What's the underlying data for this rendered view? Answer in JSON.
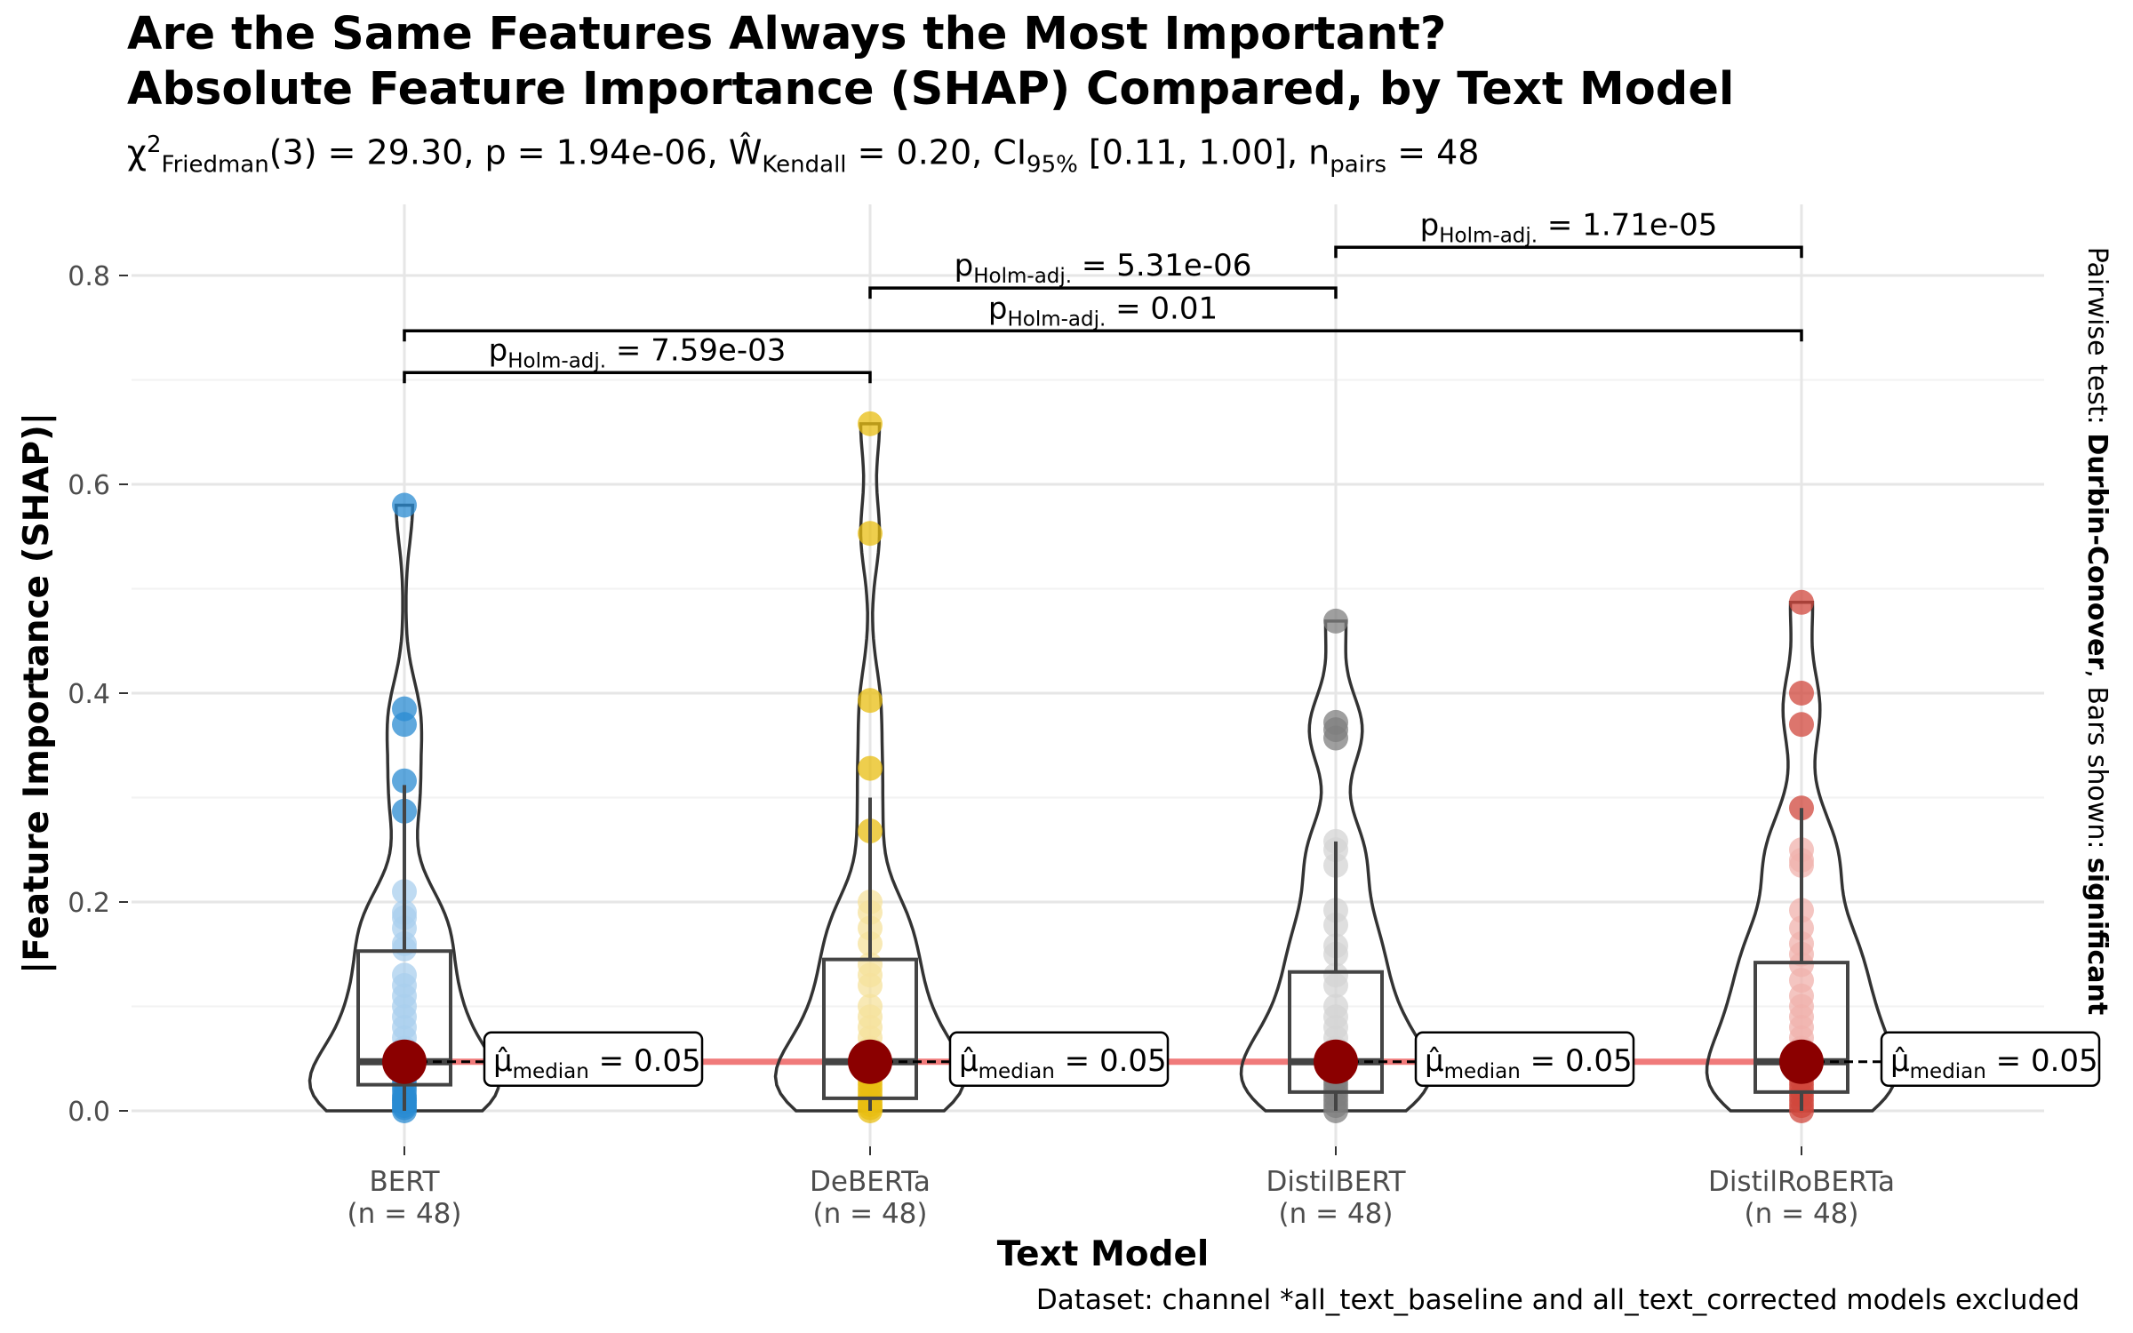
{
  "title": {
    "line1": "Are the Same Features Always the Most Important?",
    "line2": "Absolute Feature Importance (SHAP) Compared, by Text Model"
  },
  "subtitle": {
    "chi_symbol": "χ",
    "chi_sup": "2",
    "chi_sub": "Friedman",
    "df": "(3) = 29.30, p = 1.94e-06, ",
    "w_symbol": "Ŵ",
    "w_sub": "Kendall",
    "w_rest": " = 0.20, CI",
    "ci_sub": "95%",
    "ci_rest": " [0.11, 1.00], n",
    "n_sub": "pairs",
    "n_rest": " = 48"
  },
  "caption": "Dataset:  channel *all_text_baseline and all_text_corrected models excluded",
  "side_note": {
    "prefix": "Pairwise test: ",
    "test": "Durbin-Conover",
    "middle": ", Bars shown: ",
    "bars": "significant"
  },
  "chart_data": {
    "type": "violin",
    "xlabel": "Text Model",
    "ylabel": "|Feature Importance (SHAP)|",
    "ylim": [
      -0.02,
      0.82
    ],
    "yticks": [
      0.0,
      0.2,
      0.4,
      0.6,
      0.8
    ],
    "ytick_labels": [
      "0.0",
      "0.2",
      "0.4",
      "0.6",
      "0.8"
    ],
    "grid": true,
    "groups": [
      {
        "name": "BERT",
        "n_label": "(n = 48)",
        "color": "#2a8bd1",
        "light": "#a9cfee",
        "q1": 0.025,
        "median": 0.047,
        "q3": 0.153,
        "whisker_low": 0.0,
        "whisker_high": 0.312,
        "mean": 0.047,
        "median_label": "= 0.05",
        "points": [
          0.58,
          0.385,
          0.37,
          0.316,
          0.287,
          0.21,
          0.19,
          0.185,
          0.175,
          0.16,
          0.155,
          0.13,
          0.12,
          0.11,
          0.1,
          0.09,
          0.08,
          0.07,
          0.06,
          0.05,
          0.04,
          0.035,
          0.03,
          0.025,
          0.02,
          0.015,
          0.012,
          0.01,
          0.008,
          0.005,
          0.003,
          0.0
        ]
      },
      {
        "name": "DeBERTa",
        "n_label": "(n = 48)",
        "color": "#e8bd12",
        "light": "#f6e19c",
        "q1": 0.012,
        "median": 0.047,
        "q3": 0.145,
        "whisker_low": 0.0,
        "whisker_high": 0.3,
        "mean": 0.047,
        "median_label": "= 0.05",
        "points": [
          0.658,
          0.553,
          0.393,
          0.328,
          0.268,
          0.2,
          0.19,
          0.175,
          0.16,
          0.14,
          0.13,
          0.12,
          0.1,
          0.09,
          0.08,
          0.07,
          0.06,
          0.05,
          0.04,
          0.035,
          0.03,
          0.025,
          0.02,
          0.015,
          0.01,
          0.006,
          0.003,
          0.0
        ]
      },
      {
        "name": "DistilBERT",
        "n_label": "(n = 48)",
        "color": "#7f7f7f",
        "light": "#d4d4d4",
        "q1": 0.018,
        "median": 0.047,
        "q3": 0.133,
        "whisker_low": 0.0,
        "whisker_high": 0.258,
        "mean": 0.047,
        "median_label": "= 0.05",
        "points": [
          0.469,
          0.372,
          0.365,
          0.357,
          0.258,
          0.25,
          0.235,
          0.192,
          0.178,
          0.158,
          0.15,
          0.13,
          0.12,
          0.1,
          0.09,
          0.08,
          0.07,
          0.06,
          0.05,
          0.04,
          0.035,
          0.03,
          0.025,
          0.02,
          0.015,
          0.01,
          0.005,
          0.0
        ]
      },
      {
        "name": "DistilRoBERTa",
        "n_label": "(n = 48)",
        "color": "#d0473c",
        "light": "#f0b2ac",
        "q1": 0.018,
        "median": 0.047,
        "q3": 0.142,
        "whisker_low": 0.0,
        "whisker_high": 0.29,
        "mean": 0.047,
        "median_label": "= 0.05",
        "points": [
          0.487,
          0.4,
          0.37,
          0.29,
          0.25,
          0.24,
          0.235,
          0.192,
          0.175,
          0.16,
          0.15,
          0.14,
          0.125,
          0.11,
          0.1,
          0.09,
          0.08,
          0.07,
          0.06,
          0.05,
          0.04,
          0.03,
          0.025,
          0.02,
          0.015,
          0.01,
          0.005,
          0.0
        ]
      }
    ],
    "comparisons": [
      {
        "from": 0,
        "to": 1,
        "y": 0.707,
        "label": "= 7.59e-03"
      },
      {
        "from": 0,
        "to": 3,
        "y": 0.747,
        "label": "= 0.01"
      },
      {
        "from": 1,
        "to": 2,
        "y": 0.788,
        "label": "= 5.31e-06"
      },
      {
        "from": 2,
        "to": 3,
        "y": 0.827,
        "label": "= 1.71e-05"
      }
    ],
    "pval_prefix": "p",
    "pval_sub": "Holm-adj.",
    "median_prefix": "μ̂",
    "median_sub": "median"
  }
}
